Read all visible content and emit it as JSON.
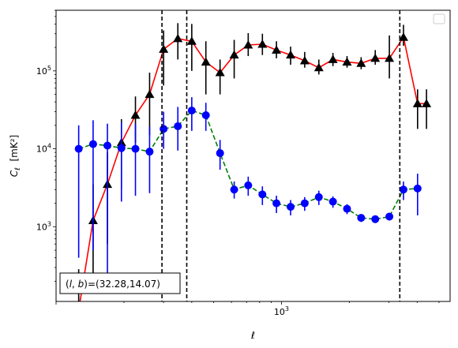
{
  "chart_data": {
    "type": "scatter",
    "xscale": "log",
    "yscale": "log",
    "xlim": [
      100,
      5600
    ],
    "ylim": [
      110,
      600000
    ],
    "xlabel": "ℓ",
    "ylabel": "C_ℓ  [mK²]",
    "x_ticklabels": [
      {
        "value": 1000,
        "base": "10",
        "exp": "3"
      }
    ],
    "y_ticklabels": [
      {
        "value": 1000,
        "base": "10",
        "exp": "3"
      },
      {
        "value": 10000,
        "base": "10",
        "exp": "4"
      },
      {
        "value": 100000,
        "base": "10",
        "exp": "5"
      }
    ],
    "annotation": "(l, b)=(32.28,14.07)",
    "annotation_parts": {
      "lhs_l": "l",
      "lhs_b": "b",
      "rhs": "=(32.28,14.07)"
    },
    "legend": "top-right",
    "legend_entries": [],
    "vlines": [
      295,
      380,
      3350
    ],
    "series": [
      {
        "marker": "triangle",
        "line": "solid",
        "line_color": "#ff0000",
        "marker_color": "#000000",
        "x": [
          126,
          146,
          169,
          195,
          225,
          260,
          300,
          347,
          400,
          462,
          534,
          617,
          712,
          823,
          950,
          1098,
          1268,
          1465,
          1692,
          1954,
          2257,
          2607,
          3011,
          3478,
          4017,
          4400
        ],
        "y": [
          85,
          1200,
          3500,
          12000,
          27000,
          50000,
          190000,
          260000,
          240000,
          130000,
          95000,
          160000,
          215000,
          220000,
          185000,
          160000,
          135000,
          110000,
          140000,
          130000,
          125000,
          145000,
          145000,
          270000,
          38000,
          38000
        ],
        "yerr_low": [
          55,
          1000,
          2900,
          9000,
          15000,
          35000,
          125000,
          120000,
          140000,
          80000,
          45000,
          80000,
          60000,
          60000,
          40000,
          40000,
          25000,
          20000,
          25000,
          20000,
          20000,
          25000,
          65000,
          60000,
          20000,
          20000
        ],
        "yerr_high": [
          200,
          2300,
          5500,
          12000,
          20000,
          45000,
          140000,
          150000,
          160000,
          110000,
          45000,
          90000,
          90000,
          80000,
          55000,
          45000,
          40000,
          30000,
          30000,
          25000,
          25000,
          40000,
          140000,
          120000,
          20000,
          20000
        ]
      },
      {
        "marker": "circle",
        "line": "dashed",
        "line_color": "#008000",
        "marker_color": "#0000ff",
        "x": [
          126,
          146,
          169,
          195,
          225,
          260,
          300,
          347,
          400,
          462,
          534,
          617,
          712,
          823,
          950,
          1098,
          1268,
          1465,
          1692,
          1954,
          2257,
          2607,
          3011,
          3478,
          4017
        ],
        "y": [
          10000,
          11500,
          11000,
          10200,
          10000,
          9200,
          18000,
          19500,
          31000,
          27000,
          8800,
          3000,
          3400,
          2600,
          2000,
          1800,
          2000,
          2400,
          2100,
          1700,
          1300,
          1250,
          1350,
          3000,
          3100
        ],
        "yerr_low": [
          9600,
          11000,
          10800,
          8100,
          7500,
          6500,
          8000,
          10000,
          14000,
          10000,
          3400,
          700,
          900,
          700,
          500,
          400,
          400,
          500,
          350,
          250,
          150,
          100,
          150,
          800,
          1700
        ],
        "yerr_high": [
          10000,
          11800,
          10000,
          11800,
          11000,
          10000,
          12000,
          15000,
          15000,
          12000,
          4200,
          800,
          1000,
          700,
          500,
          400,
          400,
          500,
          350,
          250,
          150,
          100,
          150,
          800,
          1700
        ]
      }
    ]
  }
}
